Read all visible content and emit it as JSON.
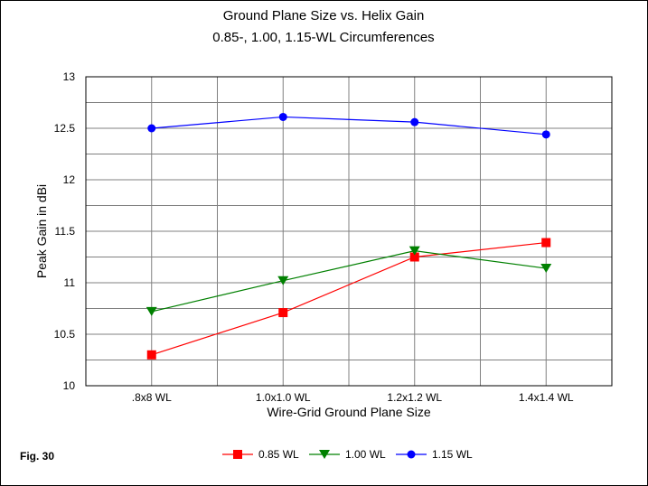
{
  "chart_data": {
    "type": "line",
    "title": "Ground Plane Size vs. Helix Gain",
    "subtitle": "0.85-, 1.00, 1.15-WL Circumferences",
    "xlabel": "Wire-Grid Ground Plane Size",
    "ylabel": "Peak Gain in dBi",
    "categories": [
      ".8x8 WL",
      "1.0x1.0 WL",
      "1.2x1.2 WL",
      "1.4x1.4 WL"
    ],
    "ylim": [
      10,
      13
    ],
    "yticks": [
      "10",
      "10.5",
      "11",
      "11.5",
      "12",
      "12.5",
      "13"
    ],
    "grid": true,
    "legend_position": "bottom",
    "series": [
      {
        "name": "0.85 WL",
        "color": "#ff0000",
        "marker": "square",
        "values": [
          10.3,
          10.71,
          11.25,
          11.39
        ]
      },
      {
        "name": "1.00 WL",
        "color": "#008000",
        "marker": "triangle-down",
        "values": [
          10.72,
          11.02,
          11.31,
          11.14
        ]
      },
      {
        "name": "1.15 WL",
        "color": "#0000ff",
        "marker": "circle",
        "values": [
          12.5,
          12.61,
          12.56,
          12.44
        ]
      }
    ]
  },
  "figure_label": "Fig. 30"
}
